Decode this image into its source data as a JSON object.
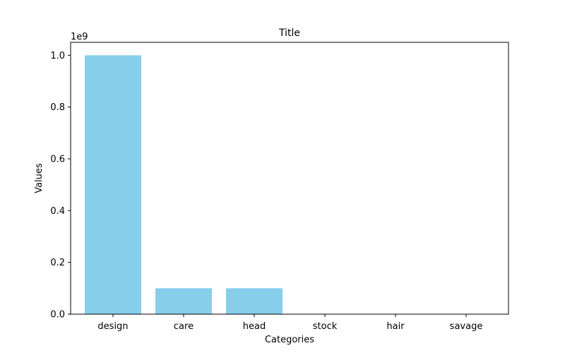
{
  "chart_data": {
    "type": "bar",
    "title": "Title",
    "xlabel": "Categories",
    "ylabel": "Values",
    "y_offset_label": "1e9",
    "categories": [
      "design",
      "care",
      "head",
      "stock",
      "hair",
      "savage"
    ],
    "values": [
      1000000000,
      100000000,
      100000000,
      10000,
      1000,
      100
    ],
    "ylim": [
      0,
      1050000000
    ],
    "y_ticks": [
      0,
      200000000,
      400000000,
      600000000,
      800000000,
      1000000000
    ],
    "y_tick_labels": [
      "0.0",
      "0.2",
      "0.4",
      "0.6",
      "0.8",
      "1.0"
    ],
    "bar_color": "#87ceeb",
    "grid": false,
    "legend": "none"
  }
}
